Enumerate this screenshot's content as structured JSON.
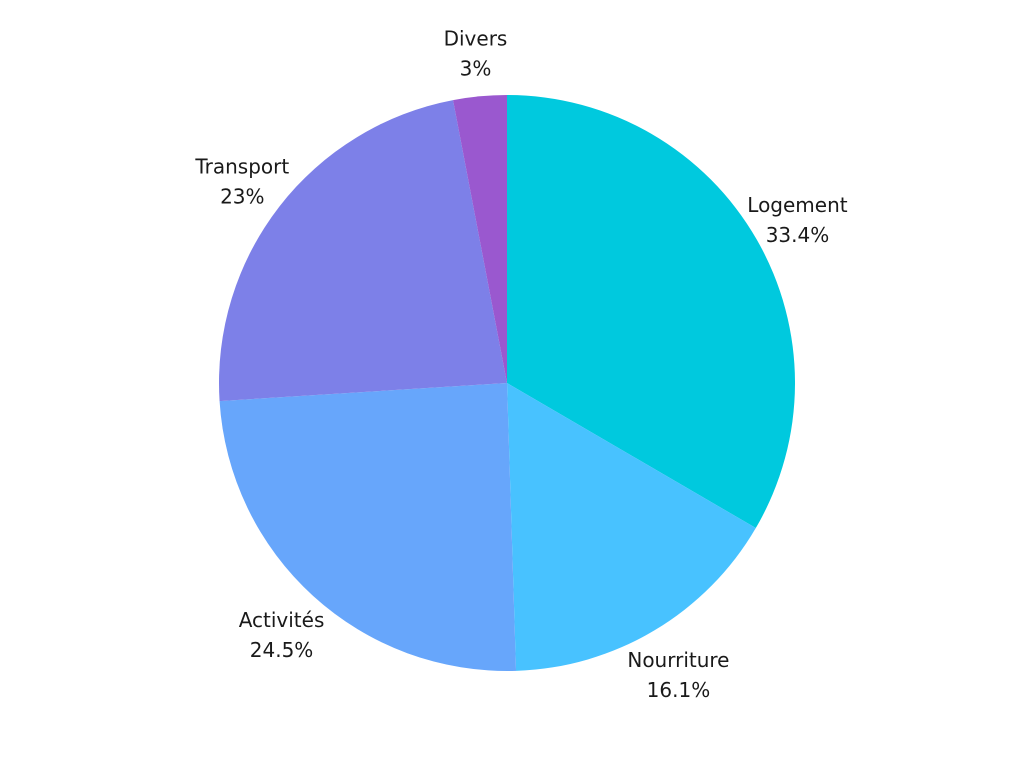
{
  "chart_data": {
    "type": "pie",
    "title": "",
    "slices": [
      {
        "label": "Logement",
        "value": 33.4,
        "display": "33.4%",
        "color": "#00C9DE"
      },
      {
        "label": "Nourriture",
        "value": 16.1,
        "display": "16.1%",
        "color": "#48C2FF"
      },
      {
        "label": "Activités",
        "value": 24.5,
        "display": "24.5%",
        "color": "#67A6FB"
      },
      {
        "label": "Transport",
        "value": 23.0,
        "display": "23%",
        "color": "#7D80E8"
      },
      {
        "label": "Divers",
        "value": 3.0,
        "display": "3%",
        "color": "#9A58CF"
      }
    ],
    "start": "top",
    "direction": "clockwise",
    "legend": "none"
  }
}
